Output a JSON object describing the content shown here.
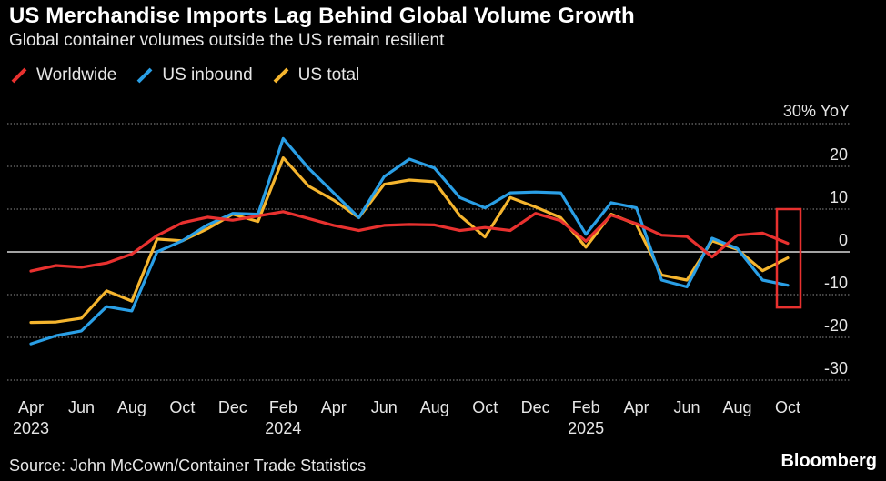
{
  "header": {
    "title": "US Merchandise Imports Lag Behind Global Volume Growth",
    "subtitle": "Global container volumes outside the US remain resilient"
  },
  "footer": {
    "source": "Source: John McCown/Container Trade Statistics",
    "brand": "Bloomberg"
  },
  "chart_data": {
    "type": "line",
    "title": "US Merchandise Imports Lag Behind Global Volume Growth",
    "subtitle": "Global container volumes outside the US remain resilient",
    "unit_label": "30% YoY",
    "xlabel": "",
    "ylabel": "YoY %",
    "ylim": [
      -30,
      30
    ],
    "y_ticks": [
      20,
      10,
      0,
      -10,
      -20,
      -30
    ],
    "grid": true,
    "legend_position": "top-left",
    "x": [
      "2023-04",
      "2023-05",
      "2023-06",
      "2023-07",
      "2023-08",
      "2023-09",
      "2023-10",
      "2023-11",
      "2023-12",
      "2024-01",
      "2024-02",
      "2024-03",
      "2024-04",
      "2024-05",
      "2024-06",
      "2024-07",
      "2024-08",
      "2024-09",
      "2024-10",
      "2024-11",
      "2024-12",
      "2025-01",
      "2025-02",
      "2025-03",
      "2025-04",
      "2025-05",
      "2025-06",
      "2025-07",
      "2025-08",
      "2025-09",
      "2025-10"
    ],
    "x_tick_labels": [
      {
        "month": "Apr",
        "year": "2023"
      },
      {
        "month": "Jun",
        "year": ""
      },
      {
        "month": "Aug",
        "year": ""
      },
      {
        "month": "Oct",
        "year": ""
      },
      {
        "month": "Dec",
        "year": ""
      },
      {
        "month": "Feb",
        "year": "2024"
      },
      {
        "month": "Apr",
        "year": ""
      },
      {
        "month": "Jun",
        "year": ""
      },
      {
        "month": "Aug",
        "year": ""
      },
      {
        "month": "Oct",
        "year": ""
      },
      {
        "month": "Dec",
        "year": ""
      },
      {
        "month": "Feb",
        "year": "2025"
      },
      {
        "month": "Apr",
        "year": ""
      },
      {
        "month": "Jun",
        "year": ""
      },
      {
        "month": "Aug",
        "year": ""
      },
      {
        "month": "Oct",
        "year": ""
      }
    ],
    "series": [
      {
        "name": "Worldwide",
        "color": "#e8312f",
        "values": [
          -4.5,
          -3.2,
          -3.6,
          -2.6,
          -0.5,
          3.8,
          6.8,
          8.1,
          7.4,
          8.4,
          9.4,
          7.8,
          6.2,
          5.0,
          6.2,
          6.4,
          6.3,
          5.0,
          5.7,
          5.0,
          9.0,
          7.3,
          2.5,
          8.6,
          6.6,
          3.9,
          3.6,
          -1.2,
          3.9,
          4.4,
          2.0
        ]
      },
      {
        "name": "US inbound",
        "color": "#2a9fe6",
        "values": [
          -21.5,
          -19.6,
          -18.5,
          -12.8,
          -13.8,
          0.0,
          2.6,
          6.3,
          9.0,
          8.8,
          26.5,
          19.6,
          13.8,
          8.0,
          17.6,
          21.7,
          19.6,
          12.7,
          10.3,
          13.8,
          14.0,
          13.8,
          4.1,
          11.5,
          10.3,
          -6.6,
          -8.2,
          3.2,
          0.8,
          -6.6,
          -7.8
        ]
      },
      {
        "name": "US total",
        "color": "#f5b52e",
        "values": [
          -16.5,
          -16.4,
          -15.5,
          -9.1,
          -11.5,
          3.0,
          2.6,
          5.4,
          8.8,
          7.1,
          22.0,
          15.4,
          12.1,
          8.0,
          15.8,
          16.8,
          16.4,
          8.5,
          3.5,
          12.7,
          10.5,
          8.0,
          1.1,
          8.8,
          6.4,
          -5.4,
          -6.6,
          2.6,
          0.6,
          -4.4,
          -1.4
        ]
      }
    ],
    "annotation": {
      "type": "highlight-box",
      "month_from": "2025-10",
      "y_from": -13,
      "y_to": 10,
      "color": "#e8312f"
    }
  }
}
